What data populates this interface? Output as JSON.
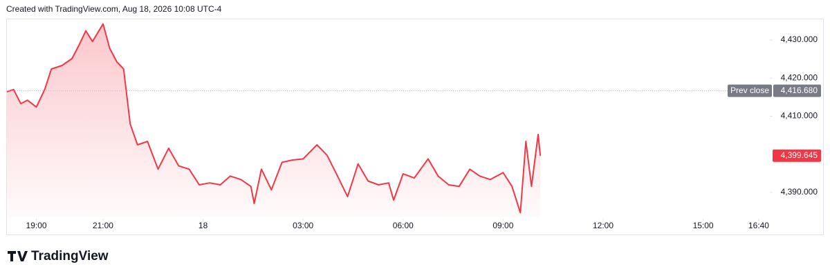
{
  "header": {
    "text": "Created with TradingView.com, Aug 18, 2026 10:08 UTC-4"
  },
  "chart_data": {
    "type": "area",
    "color": "#f23645",
    "x": [
      "18:07",
      "18:19",
      "18:32",
      "18:44",
      "19:00",
      "19:15",
      "19:27",
      "19:46",
      "20:04",
      "20:17",
      "20:29",
      "20:41",
      "21:00",
      "21:12",
      "21:25",
      "21:37",
      "21:49",
      "22:02",
      "22:20",
      "22:39",
      "22:58",
      "23:16",
      "23:35",
      "23:53",
      "00:12",
      "00:31",
      "00:49",
      "01:08",
      "01:26",
      "01:32",
      "01:45",
      "02:03",
      "02:22",
      "02:40",
      "03:00",
      "03:25",
      "03:43",
      "04:02",
      "04:20",
      "04:39",
      "04:57",
      "05:16",
      "05:34",
      "05:43",
      "06:00",
      "06:20",
      "06:45",
      "07:03",
      "07:22",
      "07:41",
      "08:00",
      "08:18",
      "08:37",
      "09:00",
      "09:16",
      "09:31",
      "09:41",
      "09:51",
      "10:03",
      "10:07"
    ],
    "values": [
      4416.4,
      4417,
      4413.3,
      4414.2,
      4412.4,
      4417,
      4422.4,
      4423.3,
      4425.1,
      4428.7,
      4432.4,
      4429.6,
      4434.2,
      4427.8,
      4424.2,
      4422.4,
      4407.9,
      4402.5,
      4403.4,
      4396.1,
      4401.6,
      4397,
      4396.1,
      4392,
      4392.5,
      4392,
      4394.3,
      4393.4,
      4391.6,
      4387.1,
      4396.1,
      4390.7,
      4397.9,
      4398.5,
      4398.8,
      4402.5,
      4399.8,
      4394.3,
      4388.9,
      4397.5,
      4393,
      4392,
      4392.5,
      4388,
      4394.9,
      4393.8,
      4398.8,
      4394.3,
      4392,
      4391.6,
      4396.1,
      4394.3,
      4393.4,
      4395.2,
      4391.6,
      4384.7,
      4403.4,
      4391.6,
      4405.2,
      4399.645
    ],
    "last_value_label": "4,399.645",
    "xlim": [
      "18:07",
      "17:00"
    ],
    "xticks": [
      "19:00",
      "21:00",
      {
        "value": "00:00",
        "label": "18"
      },
      "03:00",
      "06:00",
      "09:00",
      "12:00",
      "15:00",
      "16:40"
    ],
    "ylim": [
      4383.5,
      4435.6
    ],
    "yticks": [
      {
        "value": 4390,
        "label": "4,390.000"
      },
      {
        "value": 4410,
        "label": "4,410.000"
      },
      {
        "value": 4420,
        "label": "4,420.000"
      },
      {
        "value": 4430,
        "label": "4,430.000"
      }
    ],
    "prev_close": {
      "label": "Prev close",
      "value": 4416.68,
      "value_label": "4,416.680"
    }
  },
  "footer": {
    "brand": "TradingView"
  }
}
